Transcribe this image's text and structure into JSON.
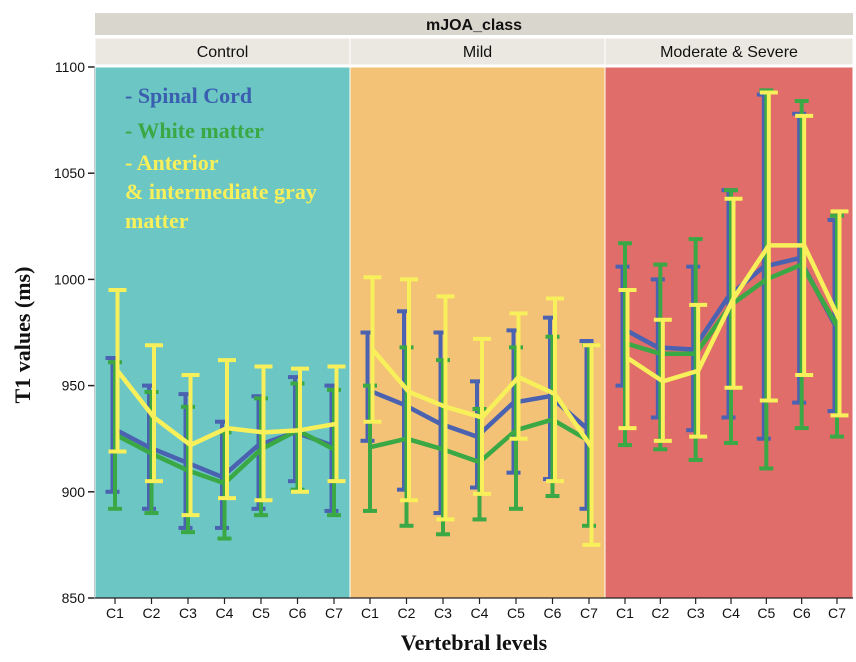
{
  "chart_data": {
    "type": "line",
    "facet_title": "mJOA_class",
    "xlabel": "Vertebral levels",
    "ylabel": "T1 values (ms)",
    "ylim": [
      850,
      1100
    ],
    "yticks": [
      850,
      900,
      950,
      1000,
      1050,
      1100
    ],
    "categories": [
      "C1",
      "C2",
      "C3",
      "C4",
      "C5",
      "C6",
      "C7"
    ],
    "legend": [
      {
        "text": "- Spinal Cord",
        "color": "#3b5fb0"
      },
      {
        "text": "- White matter",
        "color": "#3aa845"
      },
      {
        "text": "- Anterior & intermediate gray matter",
        "color": "#f7f05a"
      }
    ],
    "panels": [
      {
        "title": "Control",
        "background": "#6cc6c4",
        "series": [
          {
            "name": "Spinal Cord",
            "color": "#4a62b0",
            "values": [
              930,
              921,
              914,
              907,
              922,
              928,
              922
            ],
            "upper": [
              963,
              950,
              946,
              933,
              945,
              954,
              950
            ],
            "lower": [
              900,
              892,
              883,
              883,
              892,
              905,
              891
            ]
          },
          {
            "name": "White matter",
            "color": "#3aa845",
            "values": [
              927,
              918,
              910,
              904,
              920,
              929,
              920
            ],
            "upper": [
              961,
              947,
              940,
              928,
              944,
              951,
              948
            ],
            "lower": [
              892,
              890,
              881,
              878,
              889,
              901,
              889
            ]
          },
          {
            "name": "Anterior & intermediate gray matter",
            "color": "#f7f05a",
            "values": [
              957,
              935,
              922,
              930,
              928,
              929,
              932
            ],
            "upper": [
              995,
              969,
              955,
              962,
              959,
              958,
              959
            ],
            "lower": [
              919,
              905,
              889,
              897,
              896,
              900,
              905
            ]
          }
        ]
      },
      {
        "title": "Mild",
        "background": "#f3c277",
        "series": [
          {
            "name": "Spinal Cord",
            "color": "#4a62b0",
            "values": [
              948,
              941,
              932,
              926,
              942,
              945,
              930
            ],
            "upper": [
              975,
              985,
              975,
              952,
              976,
              982,
              971
            ],
            "lower": [
              924,
              901,
              890,
              902,
              909,
              906,
              892
            ]
          },
          {
            "name": "White matter",
            "color": "#3aa845",
            "values": [
              921,
              925,
              920,
              914,
              929,
              934,
              924
            ],
            "upper": [
              950,
              968,
              962,
              939,
              968,
              973,
              969
            ],
            "lower": [
              891,
              884,
              880,
              887,
              892,
              898,
              884
            ]
          },
          {
            "name": "Anterior & intermediate gray matter",
            "color": "#f7f05a",
            "values": [
              967,
              947,
              940,
              935,
              954,
              946,
              921
            ],
            "upper": [
              1001,
              1000,
              992,
              972,
              984,
              991,
              969
            ],
            "lower": [
              933,
              896,
              887,
              899,
              925,
              905,
              875
            ]
          }
        ]
      },
      {
        "title": "Moderate & Severe",
        "background": "#e06d6a",
        "series": [
          {
            "name": "Spinal Cord",
            "color": "#4a62b0",
            "values": [
              977,
              968,
              967,
              992,
              1006,
              1010,
              979
            ],
            "upper": [
              1006,
              1000,
              1006,
              1042,
              1087,
              1078,
              1028
            ],
            "lower": [
              950,
              935,
              929,
              935,
              925,
              942,
              938
            ]
          },
          {
            "name": "White matter",
            "color": "#3aa845",
            "values": [
              970,
              965,
              965,
              988,
              1000,
              1007,
              978
            ],
            "upper": [
              1017,
              1007,
              1019,
              1042,
              1089,
              1084,
              1030
            ],
            "lower": [
              922,
              920,
              915,
              923,
              911,
              930,
              926
            ]
          },
          {
            "name": "Anterior & intermediate gray matter",
            "color": "#f7f05a",
            "values": [
              963,
              952,
              957,
              991,
              1016,
              1016,
              981
            ],
            "upper": [
              995,
              981,
              988,
              1038,
              1088,
              1077,
              1032
            ],
            "lower": [
              930,
              924,
              926,
              949,
              943,
              955,
              936
            ]
          }
        ]
      }
    ]
  }
}
